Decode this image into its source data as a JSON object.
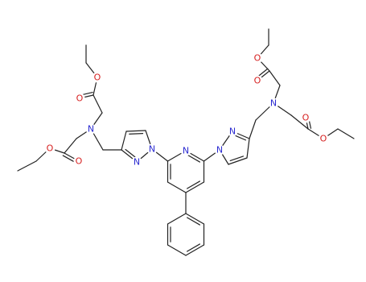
{
  "atoms": [
    "O",
    "O",
    "N",
    "O",
    "O",
    "N",
    "N",
    "N",
    "N",
    "N",
    "N",
    "O",
    "O",
    "O",
    "O"
  ]
}
